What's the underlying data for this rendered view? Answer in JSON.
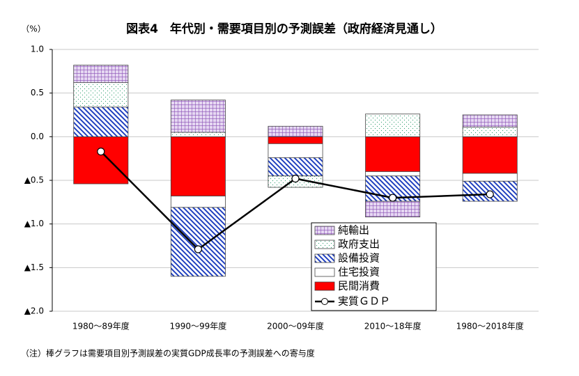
{
  "chart_data": {
    "type": "bar",
    "stacked": true,
    "title": "図表4　年代別・需要項目別の予測誤差（政府経済見通し）",
    "y_label": "（%）",
    "note": "（注）棒グラフは需要項目別予測誤差の実質GDP成長率の予測誤差への寄与度",
    "categories": [
      "1980～89年度",
      "1990～99年度",
      "2000～09年度",
      "2010～18年度",
      "1980～2018年度"
    ],
    "series": [
      {
        "name": "民間消費",
        "color": "#ff0000",
        "pattern": "solid",
        "values": [
          -0.54,
          -0.68,
          -0.08,
          -0.4,
          -0.42
        ]
      },
      {
        "name": "住宅投資",
        "color": "#ffffff",
        "pattern": "solid",
        "values": [
          null,
          -0.13,
          -0.16,
          -0.05,
          -0.09
        ]
      },
      {
        "name": "設備投資",
        "color": "#1f3fbf",
        "pattern": "hatch",
        "values": [
          0.34,
          -0.79,
          -0.21,
          -0.29,
          -0.23
        ]
      },
      {
        "name": "政府支出",
        "color": "#2e9e6e",
        "pattern": "dots",
        "values": [
          0.28,
          0.05,
          -0.13,
          0.26,
          0.11
        ]
      },
      {
        "name": "純輸出",
        "color": "#8a4fb5",
        "pattern": "grid",
        "values": [
          0.2,
          0.37,
          0.12,
          -0.18,
          0.14
        ]
      }
    ],
    "line_series": {
      "name": "実質ＧＤＰ",
      "color": "#000000",
      "values": [
        -0.17,
        -1.29,
        -0.48,
        -0.7,
        -0.66
      ]
    },
    "ylim": [
      -2.0,
      1.0
    ],
    "yticks": [
      {
        "value": 1.0,
        "label": "1.0"
      },
      {
        "value": 0.5,
        "label": "0.5"
      },
      {
        "value": 0.0,
        "label": "0.0"
      },
      {
        "value": -0.5,
        "label": "▲0.5"
      },
      {
        "value": -1.0,
        "label": "▲1.0"
      },
      {
        "value": -1.5,
        "label": "▲1.5"
      },
      {
        "value": -2.0,
        "label": "▲2.0"
      }
    ],
    "grid": true
  }
}
